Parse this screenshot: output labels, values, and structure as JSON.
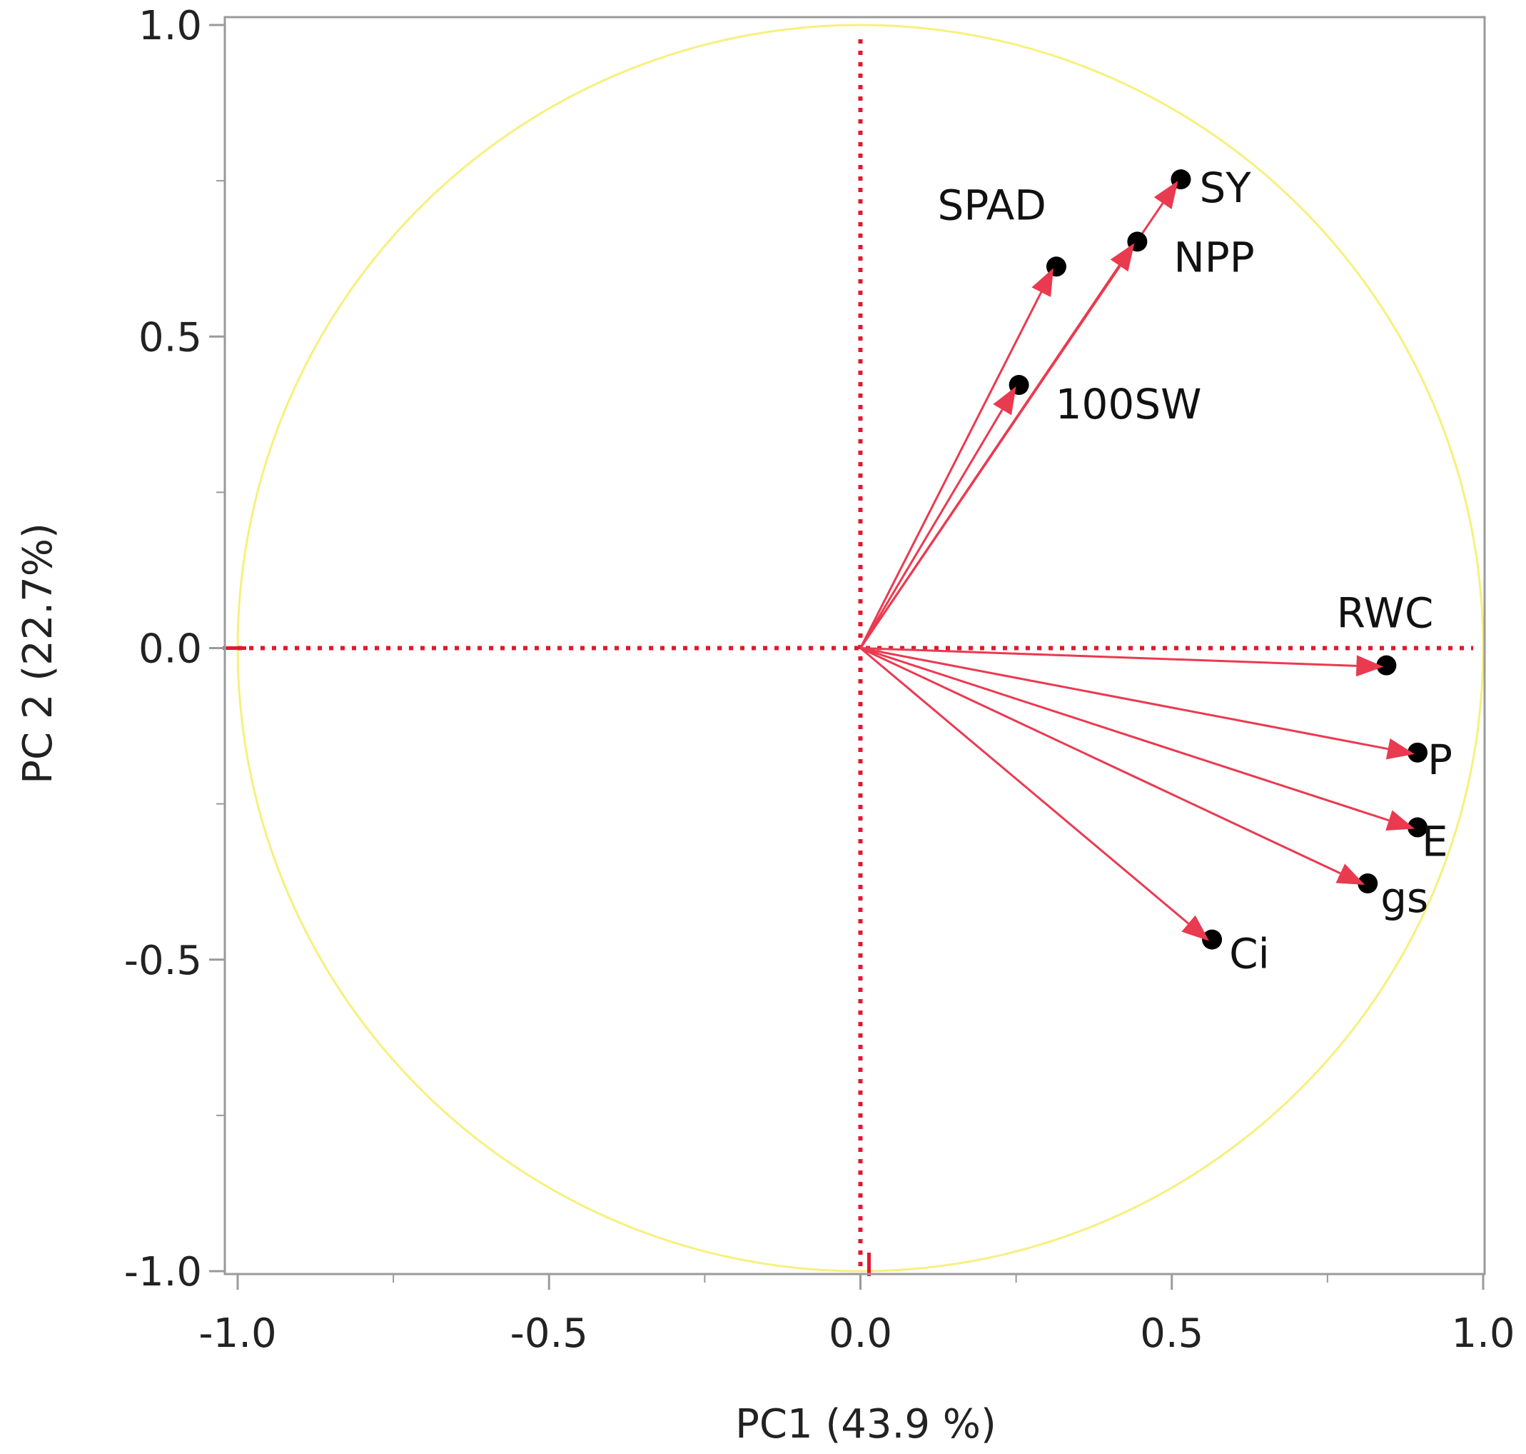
{
  "chart_data": {
    "type": "scatter",
    "subtype": "pca-correlation-circle",
    "title": "",
    "xlabel": "PC1  (43.9 %)",
    "ylabel": "PC 2  (22.7%)",
    "xlim": [
      -1.0,
      1.0
    ],
    "ylim": [
      -1.0,
      1.0
    ],
    "x_ticks": [
      -1.0,
      -0.5,
      0.0,
      0.5,
      1.0
    ],
    "y_ticks": [
      -1.0,
      -0.5,
      0.0,
      0.5,
      1.0
    ],
    "x_tick_labels": [
      "-1.0",
      "-0.5",
      "0.0",
      "0.5",
      "1.0"
    ],
    "y_tick_labels": [
      "-1.0",
      "-0.5",
      "0.0",
      "0.5",
      "1.0"
    ],
    "grid": false,
    "reference_lines": {
      "x": 0.0,
      "y": 0.0,
      "style": "dotted"
    },
    "unit_circle_radius": 1.0,
    "variables": [
      {
        "name": "SY",
        "x": 0.51,
        "y": 0.75
      },
      {
        "name": "NPP",
        "x": 0.44,
        "y": 0.65
      },
      {
        "name": "SPAD",
        "x": 0.31,
        "y": 0.61
      },
      {
        "name": "100SW",
        "x": 0.25,
        "y": 0.42
      },
      {
        "name": "RWC",
        "x": 0.84,
        "y": -0.03
      },
      {
        "name": "P",
        "x": 0.89,
        "y": -0.17
      },
      {
        "name": "E",
        "x": 0.89,
        "y": -0.29
      },
      {
        "name": "gs",
        "x": 0.81,
        "y": -0.38
      },
      {
        "name": "Ci",
        "x": 0.56,
        "y": -0.47
      }
    ],
    "colors": {
      "arrow": "#ea3a50",
      "reference_line": "#e0192f",
      "circle": "#f7f07c",
      "point": "#000000",
      "frame": "#9a9a9a"
    }
  }
}
